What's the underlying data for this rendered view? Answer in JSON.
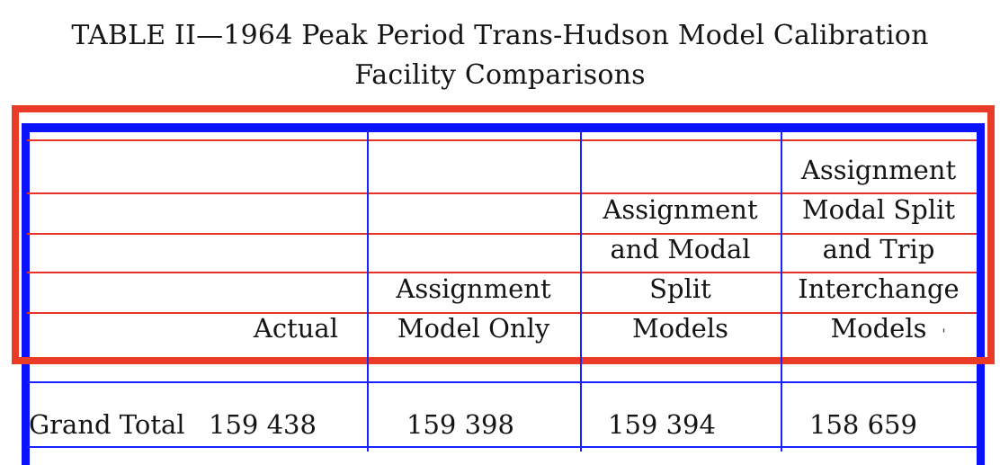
{
  "title": {
    "line1": "TABLE II—1964 Peak Period Trans-Hudson Model Calibration",
    "line2": "Facility Comparisons"
  },
  "table": {
    "columns": [
      {
        "lines": [
          "",
          "",
          "",
          "",
          "Actual"
        ]
      },
      {
        "lines": [
          "",
          "",
          "",
          "Assignment",
          "Model Only"
        ]
      },
      {
        "lines": [
          "",
          "Assignment",
          "and Modal",
          "Split",
          "Models"
        ]
      },
      {
        "lines": [
          "Assignment",
          "Modal Split",
          "and Trip",
          "Interchange",
          "Models"
        ]
      }
    ],
    "rows": [
      {
        "label": "Grand Total",
        "values": [
          "159 438",
          "159 398",
          "159 394",
          "158 659"
        ]
      }
    ]
  }
}
